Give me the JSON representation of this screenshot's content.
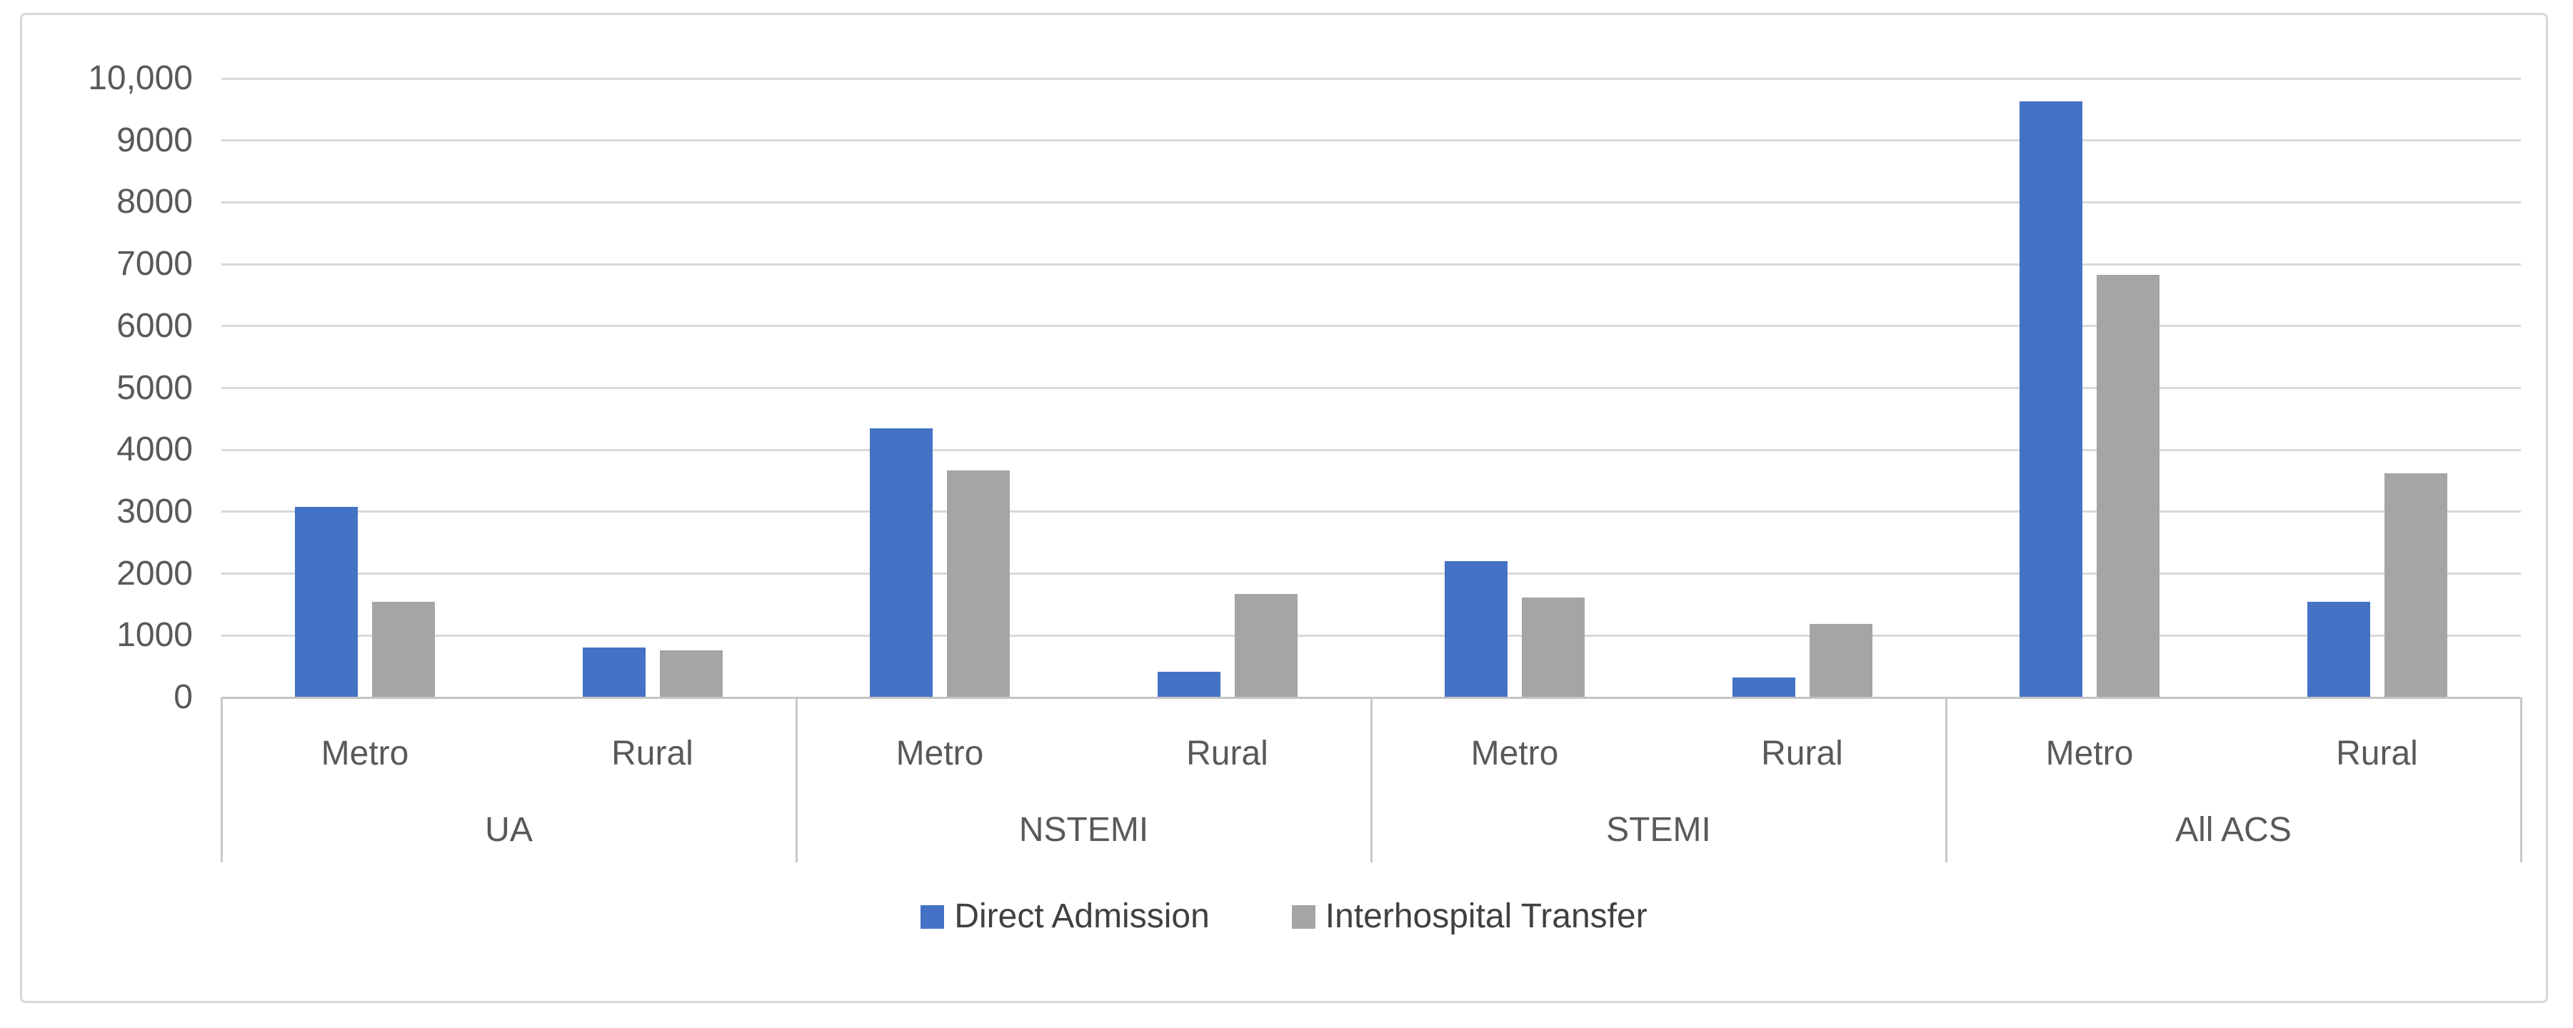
{
  "chart_data": {
    "type": "bar",
    "title": "",
    "categories": [
      "UA Metro",
      "UA Rural",
      "NSTEMI Metro",
      "NSTEMI Rural",
      "STEMI Metro",
      "STEMI Rural",
      "All ACS Metro",
      "All ACS Rural"
    ],
    "category_tick_labels": [
      "Metro",
      "Rural",
      "Metro",
      "Rural",
      "Metro",
      "Rural",
      "Metro",
      "Rural"
    ],
    "group_labels": [
      "UA",
      "NSTEMI",
      "STEMI",
      "All ACS"
    ],
    "series": [
      {
        "name": "Direct Admission",
        "color": "#4472C4",
        "values": [
          3080,
          810,
          4350,
          420,
          2200,
          320,
          9630,
          1550
        ]
      },
      {
        "name": "Interhospital Transfer",
        "color": "#A5A5A5",
        "values": [
          1540,
          760,
          3670,
          1670,
          1620,
          1190,
          6830,
          3620
        ]
      }
    ],
    "xlabel": "",
    "ylabel": "",
    "ylim": [
      0,
      10000
    ],
    "y_tick_step": 1000,
    "y_tick_labels": [
      "10,000",
      "9000",
      "8000",
      "7000",
      "6000",
      "5000",
      "4000",
      "3000",
      "2000",
      "1000",
      "0"
    ],
    "grid": true,
    "legend_position": "bottom-center",
    "styles": {
      "gridline_color": "#D9D9D9",
      "axis_line_color": "#C3C3C3",
      "tick_text_color": "#595959",
      "legend_text_color": "#404040",
      "chart_border_color": "#D7D7D7",
      "background": "#FFFFFF"
    }
  }
}
